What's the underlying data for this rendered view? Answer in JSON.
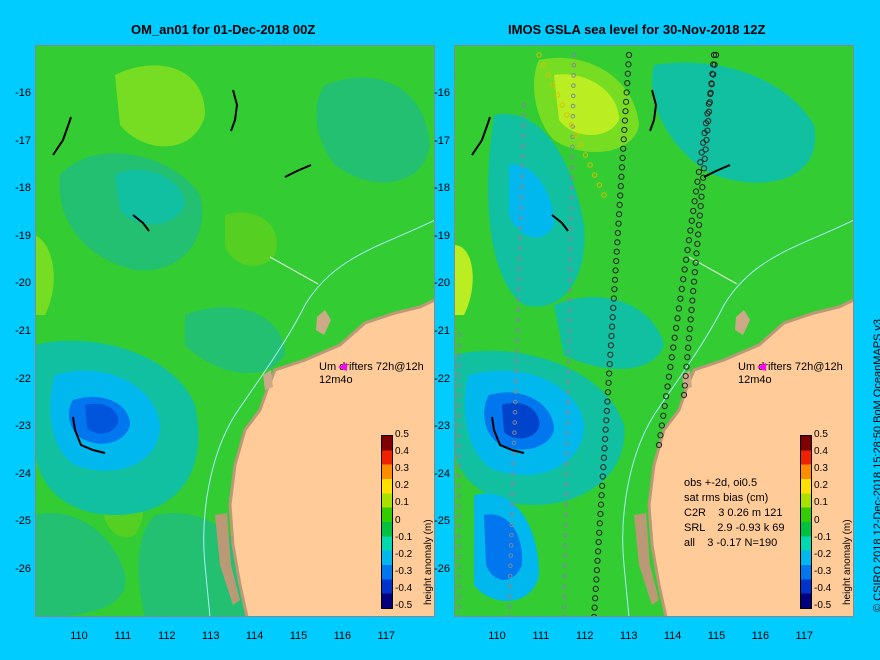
{
  "left_panel": {
    "title": "OM_an01 for 01-Dec-2018 00Z",
    "drifter_label_1": "Um  drifters 72h@12h",
    "drifter_label_2": "12m4o"
  },
  "right_panel": {
    "title": "IMOS GSLA sea level  for 30-Nov-2018 12Z",
    "drifter_label_1": "Um  drifters 72h@12h",
    "drifter_label_2": "12m4o",
    "stats_lines": [
      "obs +-2d, oi0.5",
      "sat rms bias (cm)",
      "C2R    3 0.26 m 121",
      "SRL    2.9 -0.93 k 69",
      "all    3 -0.17 N=190"
    ]
  },
  "axes": {
    "y_ticks": [
      "-16",
      "-17",
      "-18",
      "-19",
      "-20",
      "-21",
      "-22",
      "-23",
      "-24",
      "-25",
      "-26"
    ],
    "x_ticks": [
      "110",
      "111",
      "112",
      "113",
      "114",
      "115",
      "116",
      "117"
    ]
  },
  "colorbar": {
    "ticks": [
      "0.5",
      "0.4",
      "0.3",
      "0.2",
      "0.1",
      "0",
      "-0.1",
      "-0.2",
      "-0.3",
      "-0.4",
      "-0.5"
    ],
    "label": "height anomaly (m)",
    "colors": [
      "#00007f",
      "#0033cc",
      "#0077ee",
      "#00b8ee",
      "#00d8b0",
      "#00c040",
      "#33cc00",
      "#a8e000",
      "#ffe000",
      "#ff8c00",
      "#ee2200",
      "#7f0000"
    ]
  },
  "credit": "© CSIRO 2018   12-Dec-2018 15:28:50 BoM OceanMAPS v3",
  "colors": {
    "background": "#00ccff",
    "land": "#ffcc99",
    "ocean_base": "#33cc33"
  }
}
